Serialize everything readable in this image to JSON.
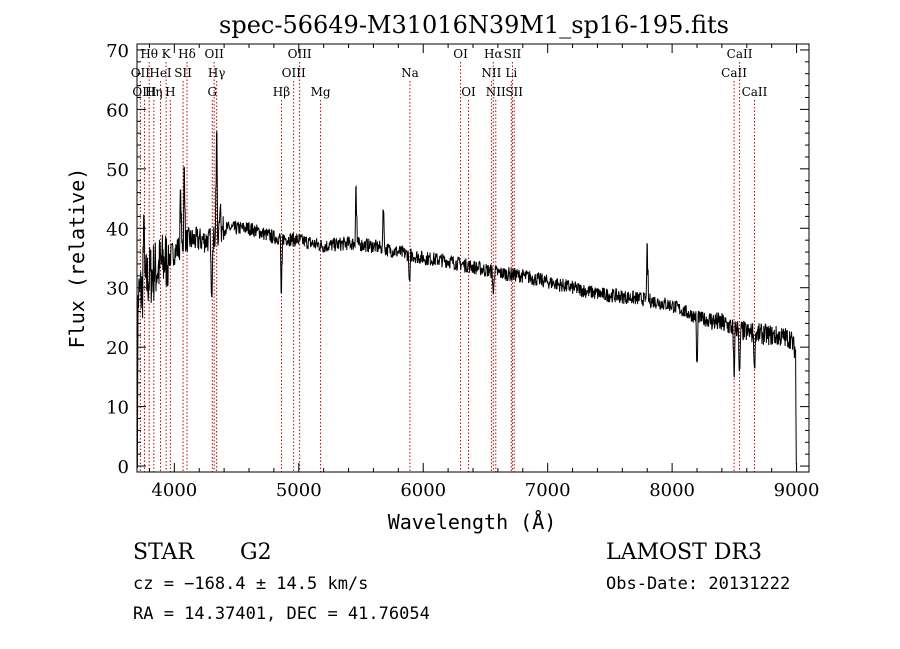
{
  "chart_data": {
    "type": "line",
    "title": "spec-56649-M31016N39M1_sp16-195.fits",
    "xlabel": "Wavelength (Å)",
    "ylabel": "Flux (relative)",
    "xlim": [
      3700,
      9100
    ],
    "ylim": [
      -1,
      71
    ],
    "xticks": [
      4000,
      5000,
      6000,
      7000,
      8000,
      9000
    ],
    "yticks": [
      0,
      10,
      20,
      30,
      40,
      50,
      60,
      70
    ],
    "continuum": [
      [
        3700,
        28
      ],
      [
        3800,
        32
      ],
      [
        3900,
        34
      ],
      [
        4000,
        36
      ],
      [
        4100,
        38
      ],
      [
        4200,
        38
      ],
      [
        4300,
        38
      ],
      [
        4400,
        40
      ],
      [
        4500,
        40
      ],
      [
        4600,
        40
      ],
      [
        4800,
        38.5
      ],
      [
        5000,
        38
      ],
      [
        5200,
        37
      ],
      [
        5400,
        37.5
      ],
      [
        5600,
        37
      ],
      [
        5800,
        36
      ],
      [
        6000,
        35
      ],
      [
        6200,
        34.5
      ],
      [
        6400,
        33.5
      ],
      [
        6600,
        32.5
      ],
      [
        6800,
        32
      ],
      [
        7000,
        31
      ],
      [
        7200,
        30
      ],
      [
        7400,
        29
      ],
      [
        7600,
        28.5
      ],
      [
        7800,
        28
      ],
      [
        8000,
        27
      ],
      [
        8200,
        25
      ],
      [
        8400,
        24
      ],
      [
        8600,
        22.5
      ],
      [
        8800,
        22
      ],
      [
        8950,
        21.5
      ],
      [
        9000,
        19
      ]
    ],
    "features": [
      [
        4340,
        56
      ],
      [
        4370,
        44
      ],
      [
        4300,
        29
      ],
      [
        4860,
        29
      ],
      [
        5460,
        47
      ],
      [
        5680,
        43
      ],
      [
        5890,
        31
      ],
      [
        6563,
        29
      ],
      [
        7800,
        37
      ],
      [
        8200,
        17.5
      ],
      [
        8498,
        15
      ],
      [
        8542,
        16
      ],
      [
        8662,
        17
      ],
      [
        4080,
        50
      ],
      [
        4050,
        46
      ],
      [
        3755,
        42
      ],
      [
        3700,
        0
      ],
      [
        9000,
        0
      ]
    ],
    "line_markers": [
      {
        "label": "Hθ",
        "x": 3798,
        "row": 0
      },
      {
        "label": "OII",
        "x": 3727,
        "row": 1
      },
      {
        "label": "OIII",
        "x": 3760,
        "row": 2
      },
      {
        "label": "K",
        "x": 3934,
        "row": 0
      },
      {
        "label": "HeI",
        "x": 3889,
        "row": 1
      },
      {
        "label": "Hη",
        "x": 3835,
        "row": 2
      },
      {
        "label": "Hδ",
        "x": 4102,
        "row": 0
      },
      {
        "label": "SII",
        "x": 4070,
        "row": 1
      },
      {
        "label": "H",
        "x": 3968,
        "row": 2
      },
      {
        "label": "OII",
        "x": 4320,
        "row": 0
      },
      {
        "label": "Hγ",
        "x": 4340,
        "row": 1
      },
      {
        "label": "G",
        "x": 4305,
        "row": 2
      },
      {
        "label": "OIII",
        "x": 5007,
        "row": 0
      },
      {
        "label": "OIII",
        "x": 4959,
        "row": 1
      },
      {
        "label": "Hβ",
        "x": 4861,
        "row": 2
      },
      {
        "label": "Mg",
        "x": 5175,
        "row": 2
      },
      {
        "label": "Na",
        "x": 5893,
        "row": 1
      },
      {
        "label": "OI",
        "x": 6300,
        "row": 0
      },
      {
        "label": "OI",
        "x": 6364,
        "row": 2
      },
      {
        "label": "Hα",
        "x": 6563,
        "row": 0
      },
      {
        "label": "NII",
        "x": 6548,
        "row": 1
      },
      {
        "label": "NII",
        "x": 6583,
        "row": 2
      },
      {
        "label": "SII",
        "x": 6717,
        "row": 0
      },
      {
        "label": "Li",
        "x": 6708,
        "row": 1
      },
      {
        "label": "SII",
        "x": 6731,
        "row": 2
      },
      {
        "label": "CaII",
        "x": 8542,
        "row": 0
      },
      {
        "label": "CaII",
        "x": 8498,
        "row": 1
      },
      {
        "label": "CaII",
        "x": 8662,
        "row": 2
      }
    ]
  },
  "info": {
    "object_class": "STAR",
    "subclass": "G2",
    "survey": "LAMOST DR3",
    "redshift": "cz = −168.4 ± 14.5 km/s",
    "obs_date": "Obs-Date: 20131222",
    "coords": "RA =  14.37401, DEC =  41.76054"
  },
  "colors": {
    "spectrum": "#000000",
    "markers": "#cc0000",
    "axes": "#000000"
  }
}
